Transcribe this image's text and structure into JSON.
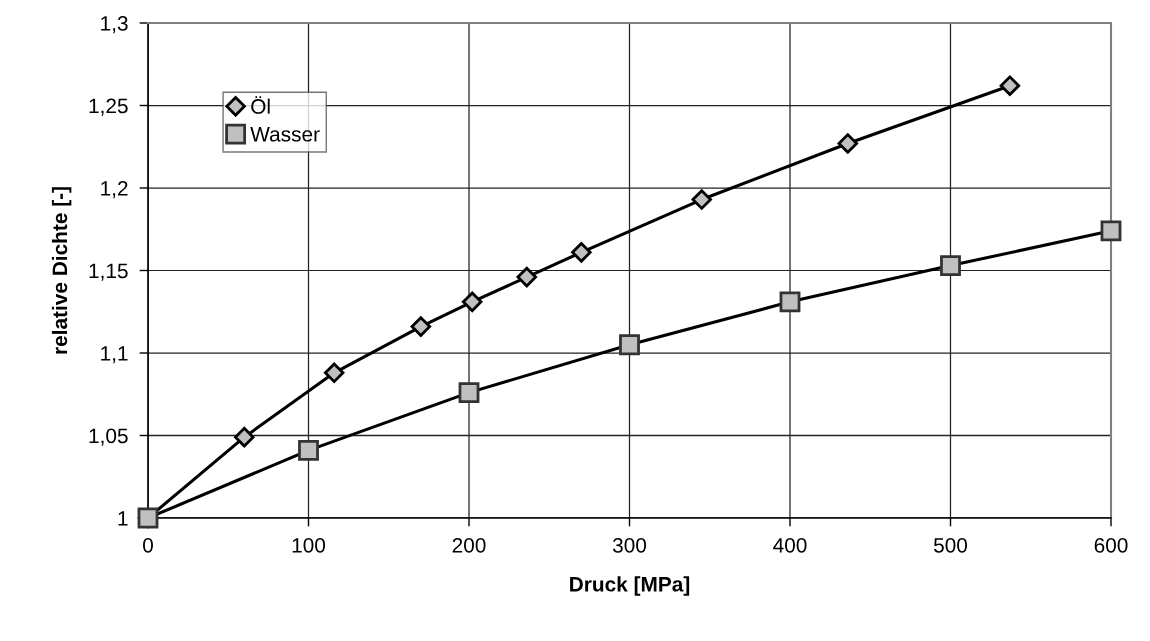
{
  "chart_data": {
    "type": "line",
    "xlabel": "Druck [MPa]",
    "ylabel": "relative Dichte [-]",
    "series": [
      {
        "name": "Öl",
        "color": "#c0c0c0",
        "marker": "diamond",
        "x": [
          0,
          60,
          116,
          170,
          202,
          236,
          270,
          345,
          436,
          537
        ],
        "values": [
          1.0,
          1.049,
          1.088,
          1.116,
          1.131,
          1.146,
          1.161,
          1.193,
          1.227,
          1.262
        ]
      },
      {
        "name": "Wasser",
        "color": "#c0c0c0",
        "marker": "square",
        "x": [
          0,
          100,
          200,
          300,
          400,
          500,
          600
        ],
        "values": [
          1.0,
          1.041,
          1.076,
          1.105,
          1.131,
          1.153,
          1.174
        ]
      }
    ],
    "xlim": [
      0,
      600
    ],
    "xticks": [
      0,
      100,
      200,
      300,
      400,
      500,
      600
    ],
    "ylim": [
      1,
      1.3
    ],
    "yticks": [
      {
        "value": 1,
        "label": "1"
      },
      {
        "value": 1.05,
        "label": "1,05"
      },
      {
        "value": 1.1,
        "label": "1,1"
      },
      {
        "value": 1.15,
        "label": "1,15"
      },
      {
        "value": 1.2,
        "label": "1,2"
      },
      {
        "value": 1.25,
        "label": "1,25"
      },
      {
        "value": 1.3,
        "label": "1,3"
      }
    ],
    "grid": true,
    "legend": "top left",
    "line_style": "solid"
  }
}
